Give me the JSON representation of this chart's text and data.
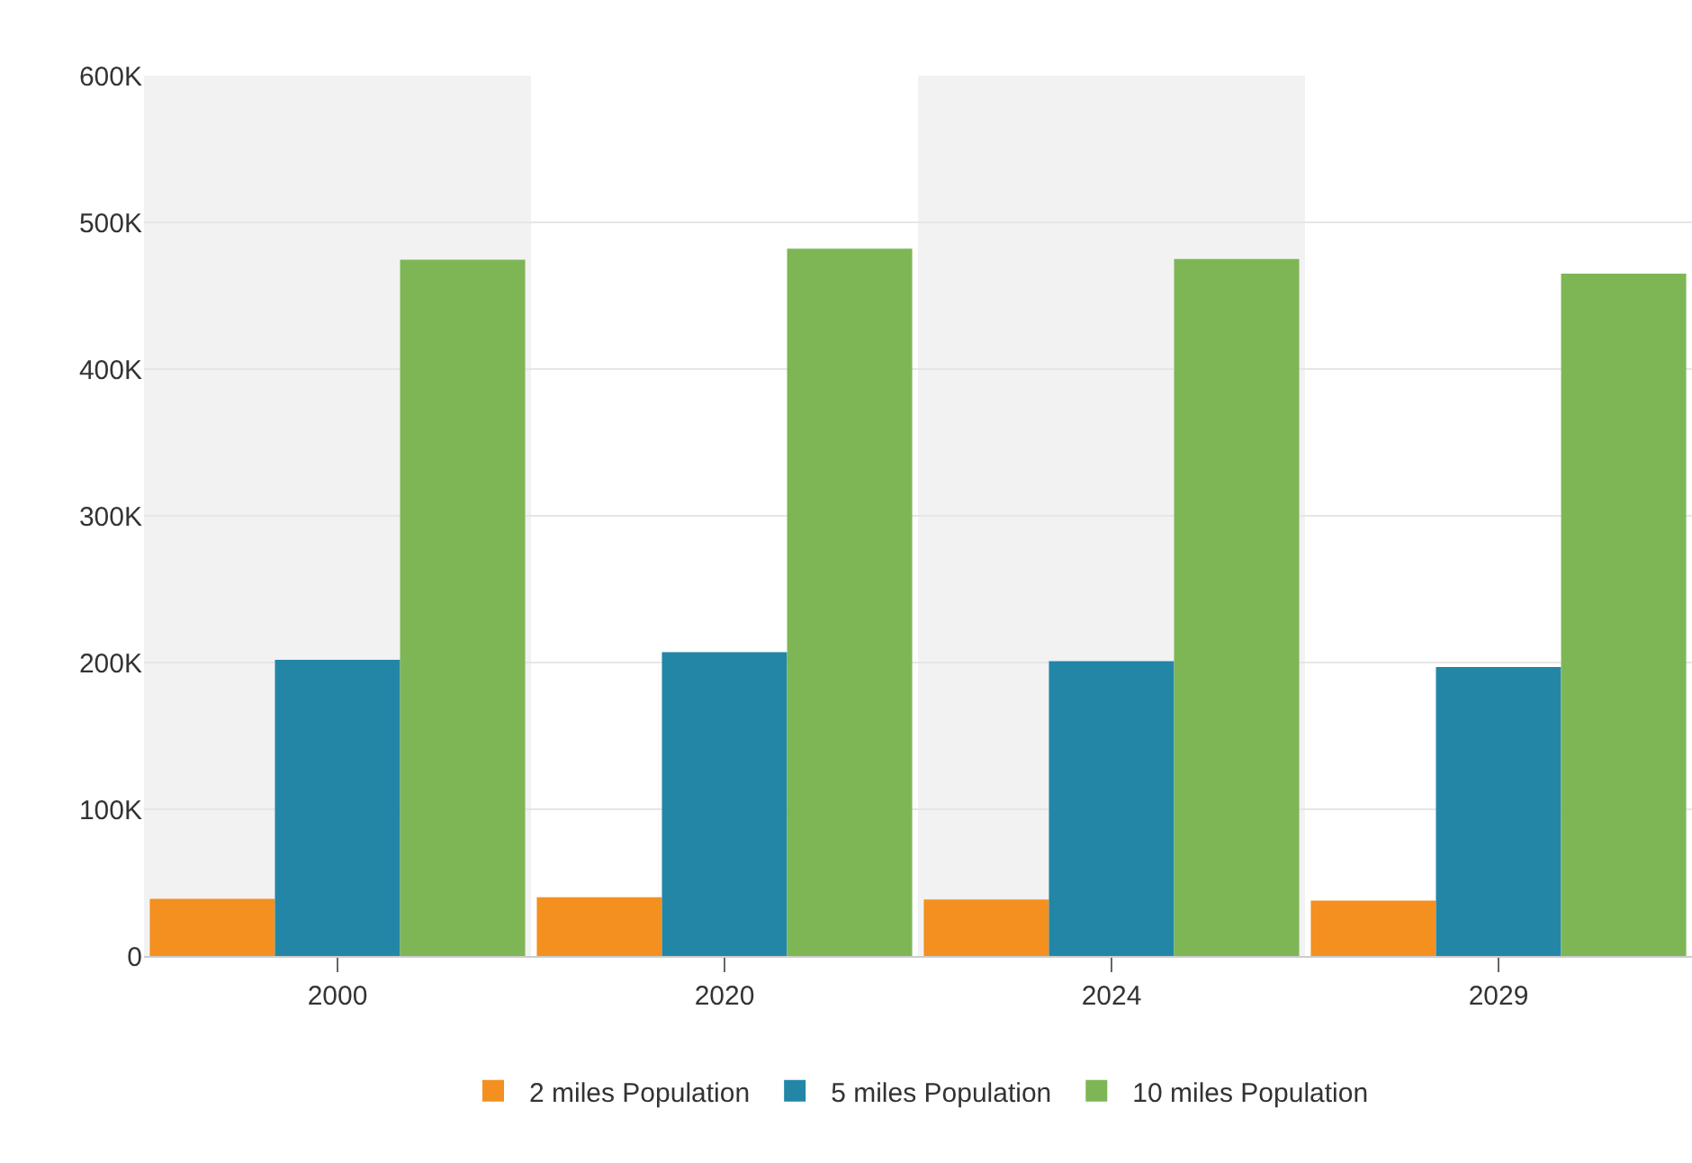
{
  "chart_data": {
    "type": "bar",
    "categories": [
      "2000",
      "2020",
      "2024",
      "2029"
    ],
    "series": [
      {
        "name": "2 miles Population",
        "color": "#f39020",
        "values": [
          39000,
          40000,
          38500,
          37700
        ]
      },
      {
        "name": "5 miles Population",
        "color": "#2386a6",
        "values": [
          201800,
          207000,
          201000,
          197000
        ]
      },
      {
        "name": "10 miles Population",
        "color": "#7eb656",
        "values": [
          474500,
          482000,
          475000,
          465000
        ]
      }
    ],
    "ylim": [
      0,
      600000
    ],
    "yticks": [
      {
        "value": 0,
        "label": "0"
      },
      {
        "value": 100000,
        "label": "100K"
      },
      {
        "value": 200000,
        "label": "200K"
      },
      {
        "value": 300000,
        "label": "300K"
      },
      {
        "value": 400000,
        "label": "400K"
      },
      {
        "value": 500000,
        "label": "500K"
      },
      {
        "value": 600000,
        "label": "600K"
      }
    ],
    "bands": [
      {
        "axis": "x",
        "from": "2000",
        "to": "2000",
        "color": "#f2f2f2"
      },
      {
        "axis": "x",
        "from": "2024",
        "to": "2024",
        "color": "#f2f2f2"
      }
    ],
    "grid": "y",
    "legend": "bottom"
  }
}
